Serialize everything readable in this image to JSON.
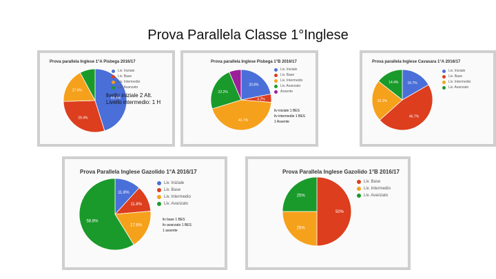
{
  "slide": {
    "title": "Prova Parallela Classe 1°Inglese"
  },
  "colors": {
    "blue": "#4a6fd8",
    "red": "#dc3e1e",
    "orange": "#f6a11c",
    "green": "#1a9a2b",
    "purple": "#9b1f9a"
  },
  "chart_data": [
    {
      "type": "pie",
      "title": "Prova parallela Inglese 1°A Pisbega 2016/17",
      "categories": [
        "Liv. Iniziale",
        "Liv. Base",
        "Liv. Intermedio",
        "Liv. Avanzato"
      ],
      "values": [
        45.1,
        29.4,
        17.6,
        7.8
      ],
      "value_labels": [
        "45.1%",
        "29.4%",
        "17.6%",
        ""
      ],
      "colors": [
        "#4a6fd8",
        "#dc3e1e",
        "#f6a11c",
        "#1a9a2b"
      ],
      "annotation": "livello iniziale 2 Alt.\nLivello intermedio: 1 H"
    },
    {
      "type": "pie",
      "title": "Prova parallela Inglese Pisbega 1°B 2016/17",
      "categories": [
        "Liv. Iniziale",
        "Liv. Base",
        "Liv. Intermedio",
        "Liv. Avanzato",
        "Assente"
      ],
      "values": [
        20.8,
        4.2,
        41.7,
        22.2,
        6.1
      ],
      "value_labels": [
        "20.8%",
        "4.2%",
        "41.7%",
        "22.2%",
        ""
      ],
      "colors": [
        "#4a6fd8",
        "#dc3e1e",
        "#f6a11c",
        "#1a9a2b",
        "#9b1f9a"
      ],
      "annotation": "liv iniziale 1 BES\nliv intermedio 1 BES\n1 Assente"
    },
    {
      "type": "pie",
      "title": "Prova parallela Inglese Cavasara 1°A 2016/17",
      "categories": [
        "Liv. Iniziale",
        "Liv. Base",
        "Liv. Intermedio",
        "Liv. Avanzato"
      ],
      "values": [
        16.7,
        46.7,
        22.2,
        14.4
      ],
      "value_labels": [
        "16.7%",
        "46.7%",
        "22.2%",
        "14.4%"
      ],
      "colors": [
        "#4a6fd8",
        "#dc3e1e",
        "#f6a11c",
        "#1a9a2b"
      ]
    },
    {
      "type": "pie",
      "title": "Prova Parallela Inglese Gazolido 1°A 2016/17",
      "categories": [
        "Liv. Iniziale",
        "Liv. Base",
        "Liv. Intermedio",
        "Liv. Avanzato"
      ],
      "values": [
        11.8,
        11.8,
        17.6,
        58.8
      ],
      "value_labels": [
        "11.8%",
        "11.8%",
        "17.6%",
        "58.8%"
      ],
      "colors": [
        "#4a6fd8",
        "#dc3e1e",
        "#f6a11c",
        "#1a9a2b"
      ],
      "annotation": "liv base 1 BES\nliv avanzato 1 BES\n1 assente"
    },
    {
      "type": "pie",
      "title": "Prova Parallela Inglese Gazolido 1°B 2016/17",
      "categories": [
        "Liv. Base",
        "Liv. Intermedio",
        "Liv. Avanzato"
      ],
      "values": [
        50,
        25,
        25
      ],
      "value_labels": [
        "50%",
        "25%",
        "25%"
      ],
      "colors": [
        "#dc3e1e",
        "#f6a11c",
        "#1a9a2b"
      ]
    }
  ]
}
